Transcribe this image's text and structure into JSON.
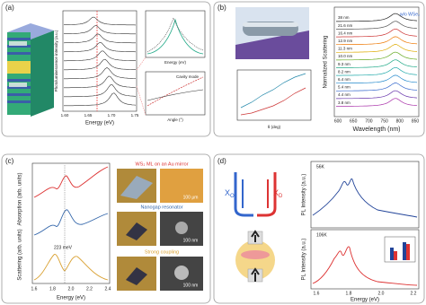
{
  "panels": [
    {
      "label": "(a)",
      "y_axis": "Photoluminescence intensity (a.u.)",
      "x_axis": "Energy (eV)",
      "x_ticks": [
        "1.60",
        "1.65",
        "1.70",
        "1.75"
      ],
      "inset_top_x": "Energy (eV)",
      "inset_bottom_title": "Cavity mode",
      "inset_bottom_x": "Angle (°)"
    },
    {
      "label": "(b)",
      "y_axis": "Normalized Scattering",
      "x_axis": "Wavelength (nm)",
      "x_ticks": [
        "600",
        "650",
        "700",
        "750",
        "800",
        "850"
      ],
      "trace_labels": [
        "38 nm",
        "21.6 nm",
        "16.4 nm",
        "12.9 nm",
        "11.3 nm",
        "10.0 nm",
        "9.3 nm",
        "8.2 nm",
        "6.4 nm",
        "5.4 nm",
        "4.4 nm",
        "3.8 nm"
      ],
      "peak_label": "w/o WSe₂",
      "inset_x": "θ (deg)"
    },
    {
      "label": "(c)",
      "absorption_y": "Absorption (arb. units)",
      "scattering_y": "Scattering (arb. units)",
      "x_axis": "Energy (eV)",
      "x_ticks": [
        "1.6",
        "1.8",
        "2.0",
        "2.2",
        "2.4"
      ],
      "splitting": "223 meV",
      "captions": [
        "WS₂ ML on an Au mirror",
        "Nanogap resonator",
        "Strong coupling"
      ],
      "scale_bars": [
        "100 μm",
        "100 nm",
        "100 nm"
      ]
    },
    {
      "label": "(d)",
      "exciton": "X",
      "exciton_subs": [
        "O",
        "D"
      ],
      "y_axis": "PL Intensity (a.u.)",
      "x_axis": "Energy (eV)",
      "x_ticks": [
        "1.6",
        "1.8",
        "2.0",
        "2.2"
      ],
      "temps": [
        "56K",
        "106K"
      ]
    }
  ]
}
